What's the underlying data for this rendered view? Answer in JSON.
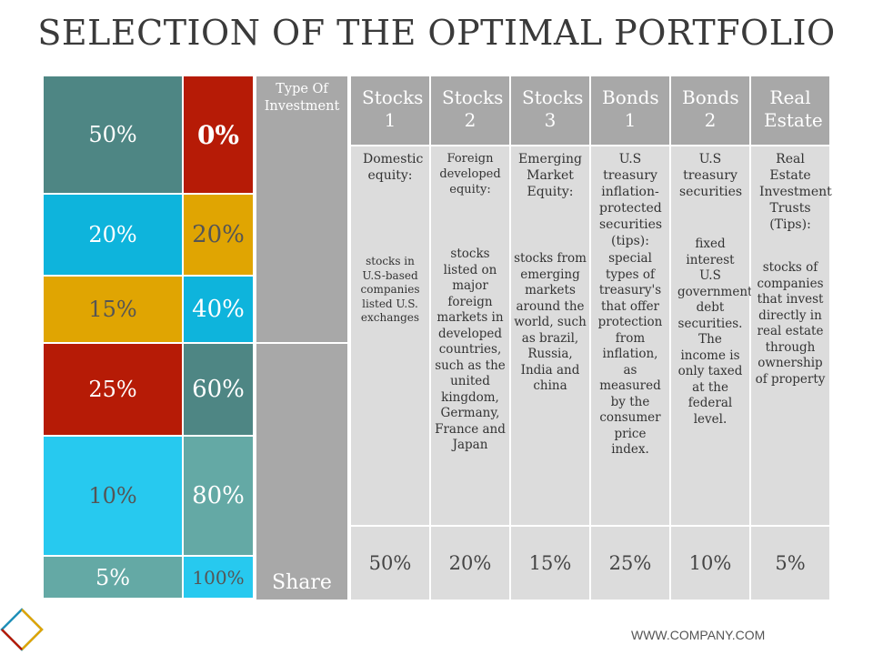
{
  "title": "SELECTION OF THE OPTIMAL PORTFOLIO",
  "colors": {
    "teal_dark": "#4e8684",
    "red": "#b61b06",
    "blue": "#0eb4dc",
    "gold": "#e0a502",
    "cyan": "#27c9ef",
    "teal_light": "#64a9a5",
    "grey_header": "#a8a8a8",
    "grey_body": "#dcdcdc"
  },
  "left_col": [
    "50%",
    "20%",
    "15%",
    "25%",
    "10%",
    "5%"
  ],
  "right_col": [
    "0%",
    "20%",
    "40%",
    "60%",
    "80%",
    "100%"
  ],
  "row_labels": {
    "type": "Type Of Investment",
    "share": "Share"
  },
  "investments": [
    {
      "header": "Stocks 1",
      "lead": "Domestic equity:",
      "desc": "stocks in U.S-based companies listed U.S. exchanges",
      "share": "50%"
    },
    {
      "header": "Stocks 2",
      "lead": "Foreign developed equity:",
      "desc": "stocks listed on major foreign markets in developed countries, such as the united kingdom, Germany, France and Japan",
      "share": "20%"
    },
    {
      "header": "Stocks 3",
      "lead": "Emerging Market Equity:",
      "desc": "stocks from emerging markets around the world, such as brazil, Russia, India and china",
      "share": "15%"
    },
    {
      "header": "Bonds 1",
      "lead": "U.S treasury inflation-protected securities (tips):",
      "desc": "special types of treasury's that offer protection from inflation, as measured by the consumer price index.",
      "share": "25%"
    },
    {
      "header": "Bonds 2",
      "lead": "U.S treasury securities",
      "desc": "fixed interest U.S government debt securities. The income is only taxed at the federal level.",
      "share": "10%"
    },
    {
      "header": "Real Estate",
      "lead": "Real Estate Investment Trusts (Tips):",
      "desc": "stocks of companies that invest directly in real estate through ownership of property",
      "share": "5%"
    }
  ],
  "footer": "WWW.COMPANY.COM"
}
